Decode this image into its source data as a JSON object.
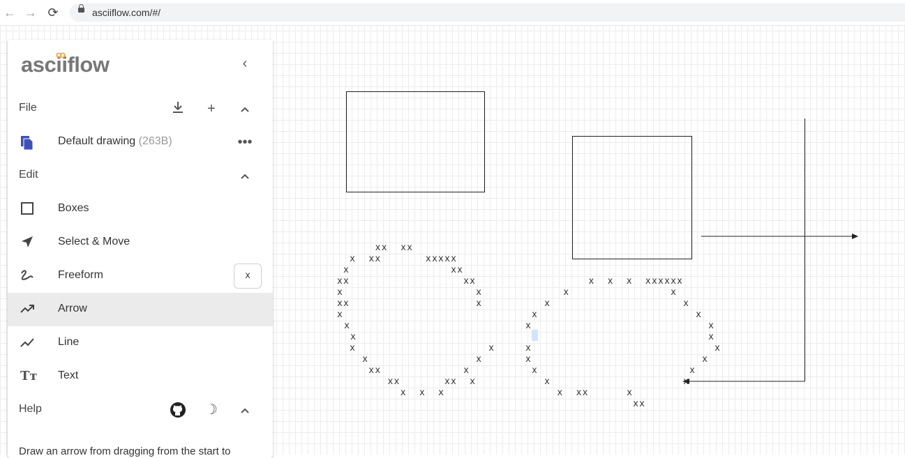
{
  "browser": {
    "url": "asciiflow.com/#/"
  },
  "sidebar": {
    "logo_text": "asciiflow",
    "logo_accent_color": "#f4a340",
    "collapse_icon": "chevron-left-icon",
    "file": {
      "label": "File",
      "actions": [
        "download-icon",
        "plus-icon",
        "chevron-up-icon"
      ]
    },
    "drawing": {
      "name": "Default drawing",
      "size": "(263B)",
      "icon": "file-copy-icon",
      "icon_color": "#3f51b5"
    },
    "edit": {
      "label": "Edit"
    },
    "tools": [
      {
        "label": "Boxes",
        "icon": "square-icon"
      },
      {
        "label": "Select & Move",
        "icon": "navigation-arrow-icon"
      },
      {
        "label": "Freeform",
        "icon": "squiggle-icon",
        "shortcut": "x"
      },
      {
        "label": "Arrow",
        "icon": "trending-up-icon",
        "selected": true
      },
      {
        "label": "Line",
        "icon": "line-chart-icon"
      },
      {
        "label": "Text",
        "icon": "text-icon"
      }
    ],
    "help": {
      "label": "Help",
      "description": "Draw an arrow from dragging from the start to"
    }
  },
  "canvas": {
    "grid_color": "#ececec",
    "ascii_lines_left": [
      "      xx  xx",
      "  x  xx       xxxxx",
      " x                xx",
      "xx                  xx",
      "x                     x",
      "xx                    x",
      "x",
      " x",
      "  x",
      "  x                     x",
      "    x                 x",
      "     xx             x",
      "        xx       xx  x",
      "          x  x  x"
    ],
    "ascii_lines_right": [
      "          x  x  x  xxxxxx",
      "      x                x",
      "   x                     x",
      " x                         x",
      "x                            x",
      "                             x",
      "x                             x",
      "x                           x",
      " x                        x",
      "   x                     x",
      "     x  xx      x",
      "                 xx"
    ]
  }
}
